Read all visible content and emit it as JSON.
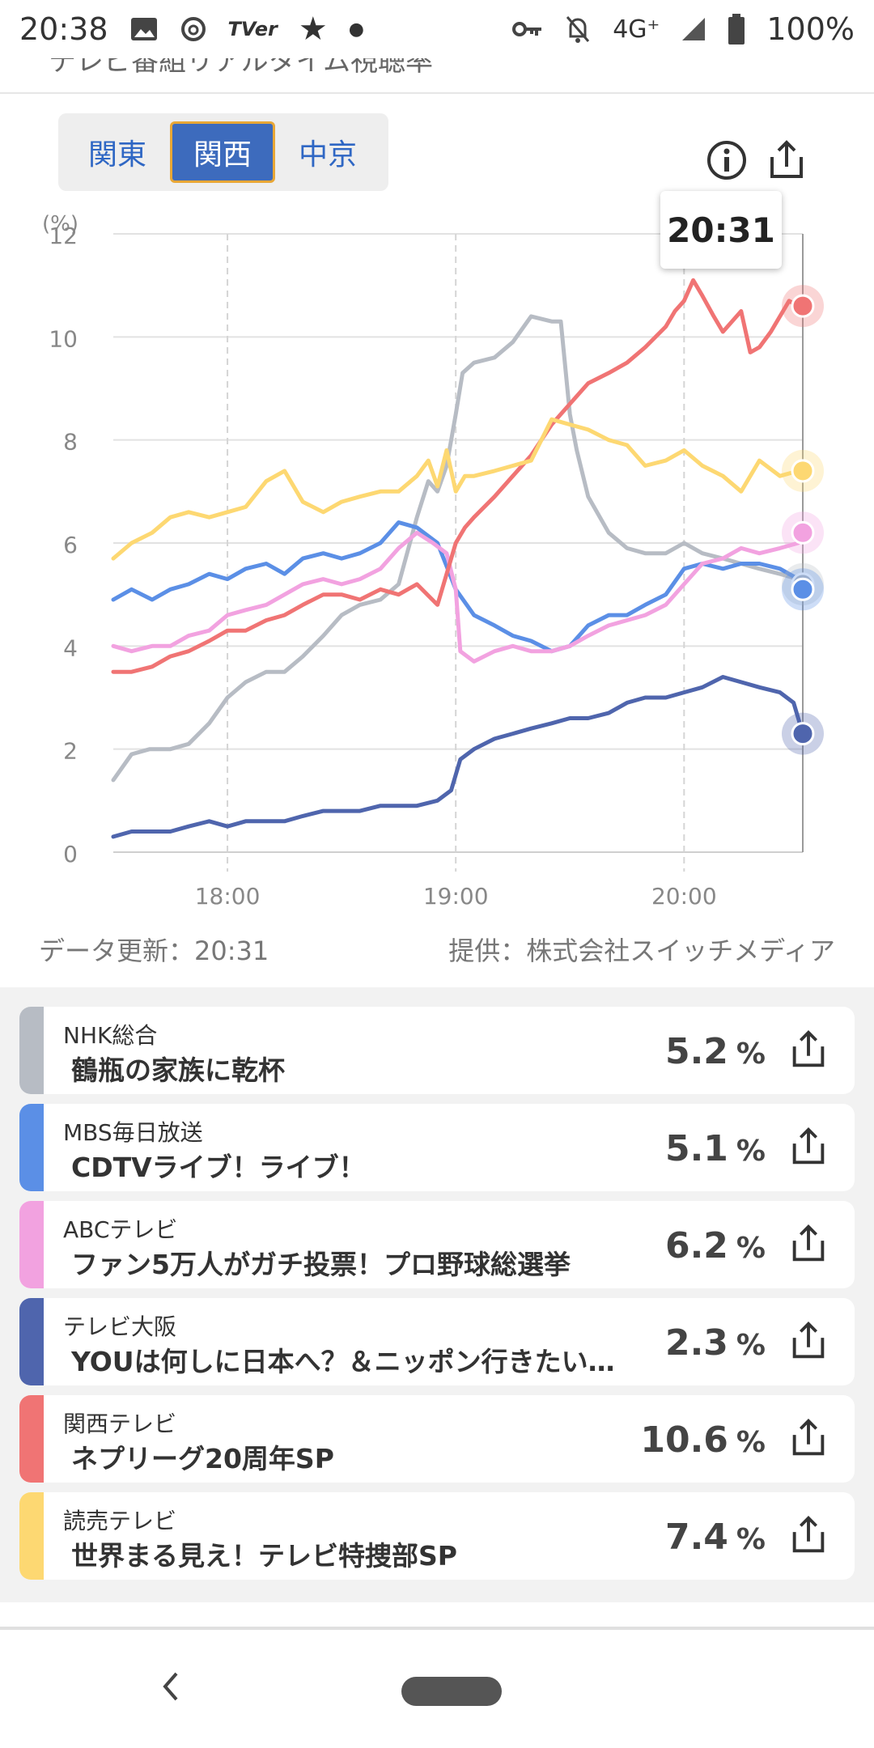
{
  "status": {
    "time": "20:38",
    "network": "4G⁺",
    "battery": "100%",
    "tver": "TVer"
  },
  "page_header_cut": "テレビ番組リアルタイム視聴率",
  "region_tabs": [
    {
      "label": "関東",
      "active": false
    },
    {
      "label": "関西",
      "active": true
    },
    {
      "label": "中京",
      "active": false
    }
  ],
  "tooltip_time": "20:31",
  "footer": {
    "update": "データ更新：20:31",
    "credit": "提供：株式会社スイッチメディア"
  },
  "programs": [
    {
      "channel": "NHK総合",
      "title": "鶴瓶の家族に乾杯",
      "rating": "5.2",
      "unit": "%",
      "color": "#b7bcc4"
    },
    {
      "channel": "MBS毎日放送",
      "title": "CDTVライブ！ライブ！",
      "rating": "5.1",
      "unit": "%",
      "color": "#5b8fe6"
    },
    {
      "channel": "ABCテレビ",
      "title": "ファン5万人がガチ投票！プロ野球総選挙",
      "rating": "6.2",
      "unit": "%",
      "color": "#f2a2e0"
    },
    {
      "channel": "テレビ大阪",
      "title": "YOUは何しに日本へ？＆ニッポン行きたい人応援団",
      "rating": "2.3",
      "unit": "%",
      "color": "#4f65ad"
    },
    {
      "channel": "関西テレビ",
      "title": "ネプリーグ20周年SP",
      "rating": "10.6",
      "unit": "%",
      "color": "#f07474"
    },
    {
      "channel": "読売テレビ",
      "title": "世界まる見え！テレビ特捜部SP",
      "rating": "7.4",
      "unit": "%",
      "color": "#fdd872"
    }
  ],
  "chart_data": {
    "type": "line",
    "yunit": "(%)",
    "ylim": [
      0,
      12
    ],
    "yticks": [
      0,
      2,
      4,
      6,
      8,
      10,
      12
    ],
    "xlim": [
      17.5,
      20.52
    ],
    "xticks": [
      {
        "v": 18,
        "label": "18:00"
      },
      {
        "v": 19,
        "label": "19:00"
      },
      {
        "v": 20,
        "label": "20:00"
      }
    ],
    "series": [
      {
        "name": "NHK総合",
        "color": "#b7bcc4",
        "x": [
          17.5,
          17.58,
          17.66,
          17.75,
          17.83,
          17.92,
          18.0,
          18.08,
          18.17,
          18.25,
          18.33,
          18.42,
          18.5,
          18.58,
          18.67,
          18.75,
          18.83,
          18.88,
          18.92,
          18.96,
          19.0,
          19.03,
          19.08,
          19.17,
          19.25,
          19.33,
          19.42,
          19.46,
          19.5,
          19.53,
          19.58,
          19.67,
          19.75,
          19.83,
          19.92,
          20.0,
          20.08,
          20.17,
          20.25,
          20.33,
          20.42,
          20.5,
          20.52
        ],
        "y": [
          1.4,
          1.9,
          2.0,
          2.0,
          2.1,
          2.5,
          3.0,
          3.3,
          3.5,
          3.5,
          3.8,
          4.2,
          4.6,
          4.8,
          4.9,
          5.2,
          6.5,
          7.2,
          7.0,
          7.5,
          8.5,
          9.3,
          9.5,
          9.6,
          9.9,
          10.4,
          10.3,
          10.3,
          8.5,
          7.8,
          6.9,
          6.2,
          5.9,
          5.8,
          5.8,
          6.0,
          5.8,
          5.7,
          5.6,
          5.5,
          5.4,
          5.3,
          5.2
        ]
      },
      {
        "name": "MBS毎日放送",
        "color": "#5b8fe6",
        "x": [
          17.5,
          17.58,
          17.67,
          17.75,
          17.83,
          17.92,
          18.0,
          18.08,
          18.17,
          18.25,
          18.33,
          18.42,
          18.5,
          18.58,
          18.67,
          18.75,
          18.83,
          18.92,
          19.0,
          19.08,
          19.17,
          19.25,
          19.33,
          19.42,
          19.5,
          19.58,
          19.67,
          19.75,
          19.83,
          19.92,
          20.0,
          20.08,
          20.17,
          20.25,
          20.33,
          20.42,
          20.5,
          20.52
        ],
        "y": [
          4.9,
          5.1,
          4.9,
          5.1,
          5.2,
          5.4,
          5.3,
          5.5,
          5.6,
          5.4,
          5.7,
          5.8,
          5.7,
          5.8,
          6.0,
          6.4,
          6.3,
          6.0,
          5.1,
          4.6,
          4.4,
          4.2,
          4.1,
          3.9,
          4.0,
          4.4,
          4.6,
          4.6,
          4.8,
          5.0,
          5.5,
          5.6,
          5.5,
          5.6,
          5.6,
          5.5,
          5.3,
          5.1
        ]
      },
      {
        "name": "ABCテレビ",
        "color": "#f2a2e0",
        "x": [
          17.5,
          17.58,
          17.67,
          17.75,
          17.83,
          17.92,
          18.0,
          18.08,
          18.17,
          18.25,
          18.33,
          18.42,
          18.5,
          18.58,
          18.67,
          18.75,
          18.83,
          18.9,
          18.96,
          19.0,
          19.02,
          19.08,
          19.17,
          19.25,
          19.33,
          19.42,
          19.5,
          19.58,
          19.67,
          19.75,
          19.83,
          19.92,
          20.0,
          20.08,
          20.17,
          20.25,
          20.33,
          20.42,
          20.5,
          20.52
        ],
        "y": [
          4.0,
          3.9,
          4.0,
          4.0,
          4.2,
          4.3,
          4.6,
          4.7,
          4.8,
          5.0,
          5.2,
          5.3,
          5.2,
          5.3,
          5.5,
          5.9,
          6.2,
          6.0,
          5.8,
          5.1,
          3.9,
          3.7,
          3.9,
          4.0,
          3.9,
          3.9,
          4.0,
          4.2,
          4.4,
          4.5,
          4.6,
          4.8,
          5.2,
          5.6,
          5.7,
          5.9,
          5.8,
          5.9,
          6.0,
          6.2
        ]
      },
      {
        "name": "テレビ大阪",
        "color": "#4f65ad",
        "x": [
          17.5,
          17.58,
          17.67,
          17.75,
          17.83,
          17.92,
          18.0,
          18.08,
          18.17,
          18.25,
          18.33,
          18.42,
          18.5,
          18.58,
          18.67,
          18.75,
          18.83,
          18.92,
          18.98,
          19.02,
          19.08,
          19.17,
          19.25,
          19.33,
          19.42,
          19.5,
          19.58,
          19.67,
          19.75,
          19.83,
          19.92,
          20.0,
          20.08,
          20.17,
          20.25,
          20.33,
          20.42,
          20.48,
          20.52
        ],
        "y": [
          0.3,
          0.4,
          0.4,
          0.4,
          0.5,
          0.6,
          0.5,
          0.6,
          0.6,
          0.6,
          0.7,
          0.8,
          0.8,
          0.8,
          0.9,
          0.9,
          0.9,
          1.0,
          1.2,
          1.8,
          2.0,
          2.2,
          2.3,
          2.4,
          2.5,
          2.6,
          2.6,
          2.7,
          2.9,
          3.0,
          3.0,
          3.1,
          3.2,
          3.4,
          3.3,
          3.2,
          3.1,
          2.9,
          2.3
        ]
      },
      {
        "name": "関西テレビ",
        "color": "#f07474",
        "x": [
          17.5,
          17.58,
          17.67,
          17.75,
          17.83,
          17.92,
          18.0,
          18.08,
          18.17,
          18.25,
          18.33,
          18.42,
          18.5,
          18.58,
          18.67,
          18.75,
          18.83,
          18.92,
          19.0,
          19.04,
          19.08,
          19.17,
          19.25,
          19.33,
          19.42,
          19.5,
          19.58,
          19.67,
          19.75,
          19.83,
          19.92,
          19.96,
          20.0,
          20.04,
          20.08,
          20.13,
          20.17,
          20.25,
          20.29,
          20.33,
          20.38,
          20.42,
          20.46,
          20.5,
          20.52
        ],
        "y": [
          3.5,
          3.5,
          3.6,
          3.8,
          3.9,
          4.1,
          4.3,
          4.3,
          4.5,
          4.6,
          4.8,
          5.0,
          5.0,
          4.9,
          5.1,
          5.0,
          5.2,
          4.8,
          6.0,
          6.3,
          6.5,
          6.9,
          7.3,
          7.7,
          8.3,
          8.7,
          9.1,
          9.3,
          9.5,
          9.8,
          10.2,
          10.5,
          10.7,
          11.1,
          10.8,
          10.4,
          10.1,
          10.5,
          9.7,
          9.8,
          10.1,
          10.4,
          10.7,
          10.6,
          10.6
        ]
      },
      {
        "name": "読売テレビ",
        "color": "#fdd872",
        "x": [
          17.5,
          17.58,
          17.67,
          17.75,
          17.83,
          17.92,
          18.0,
          18.08,
          18.17,
          18.25,
          18.33,
          18.42,
          18.5,
          18.58,
          18.67,
          18.75,
          18.83,
          18.88,
          18.92,
          18.96,
          19.0,
          19.04,
          19.08,
          19.17,
          19.25,
          19.33,
          19.42,
          19.5,
          19.58,
          19.67,
          19.75,
          19.83,
          19.92,
          20.0,
          20.08,
          20.17,
          20.25,
          20.33,
          20.42,
          20.5,
          20.52
        ],
        "y": [
          5.7,
          6.0,
          6.2,
          6.5,
          6.6,
          6.5,
          6.6,
          6.7,
          7.2,
          7.4,
          6.8,
          6.6,
          6.8,
          6.9,
          7.0,
          7.0,
          7.3,
          7.6,
          7.1,
          7.8,
          7.0,
          7.3,
          7.3,
          7.4,
          7.5,
          7.6,
          8.4,
          8.3,
          8.2,
          8.0,
          7.9,
          7.5,
          7.6,
          7.8,
          7.5,
          7.3,
          7.0,
          7.6,
          7.3,
          7.4,
          7.4
        ]
      }
    ]
  }
}
